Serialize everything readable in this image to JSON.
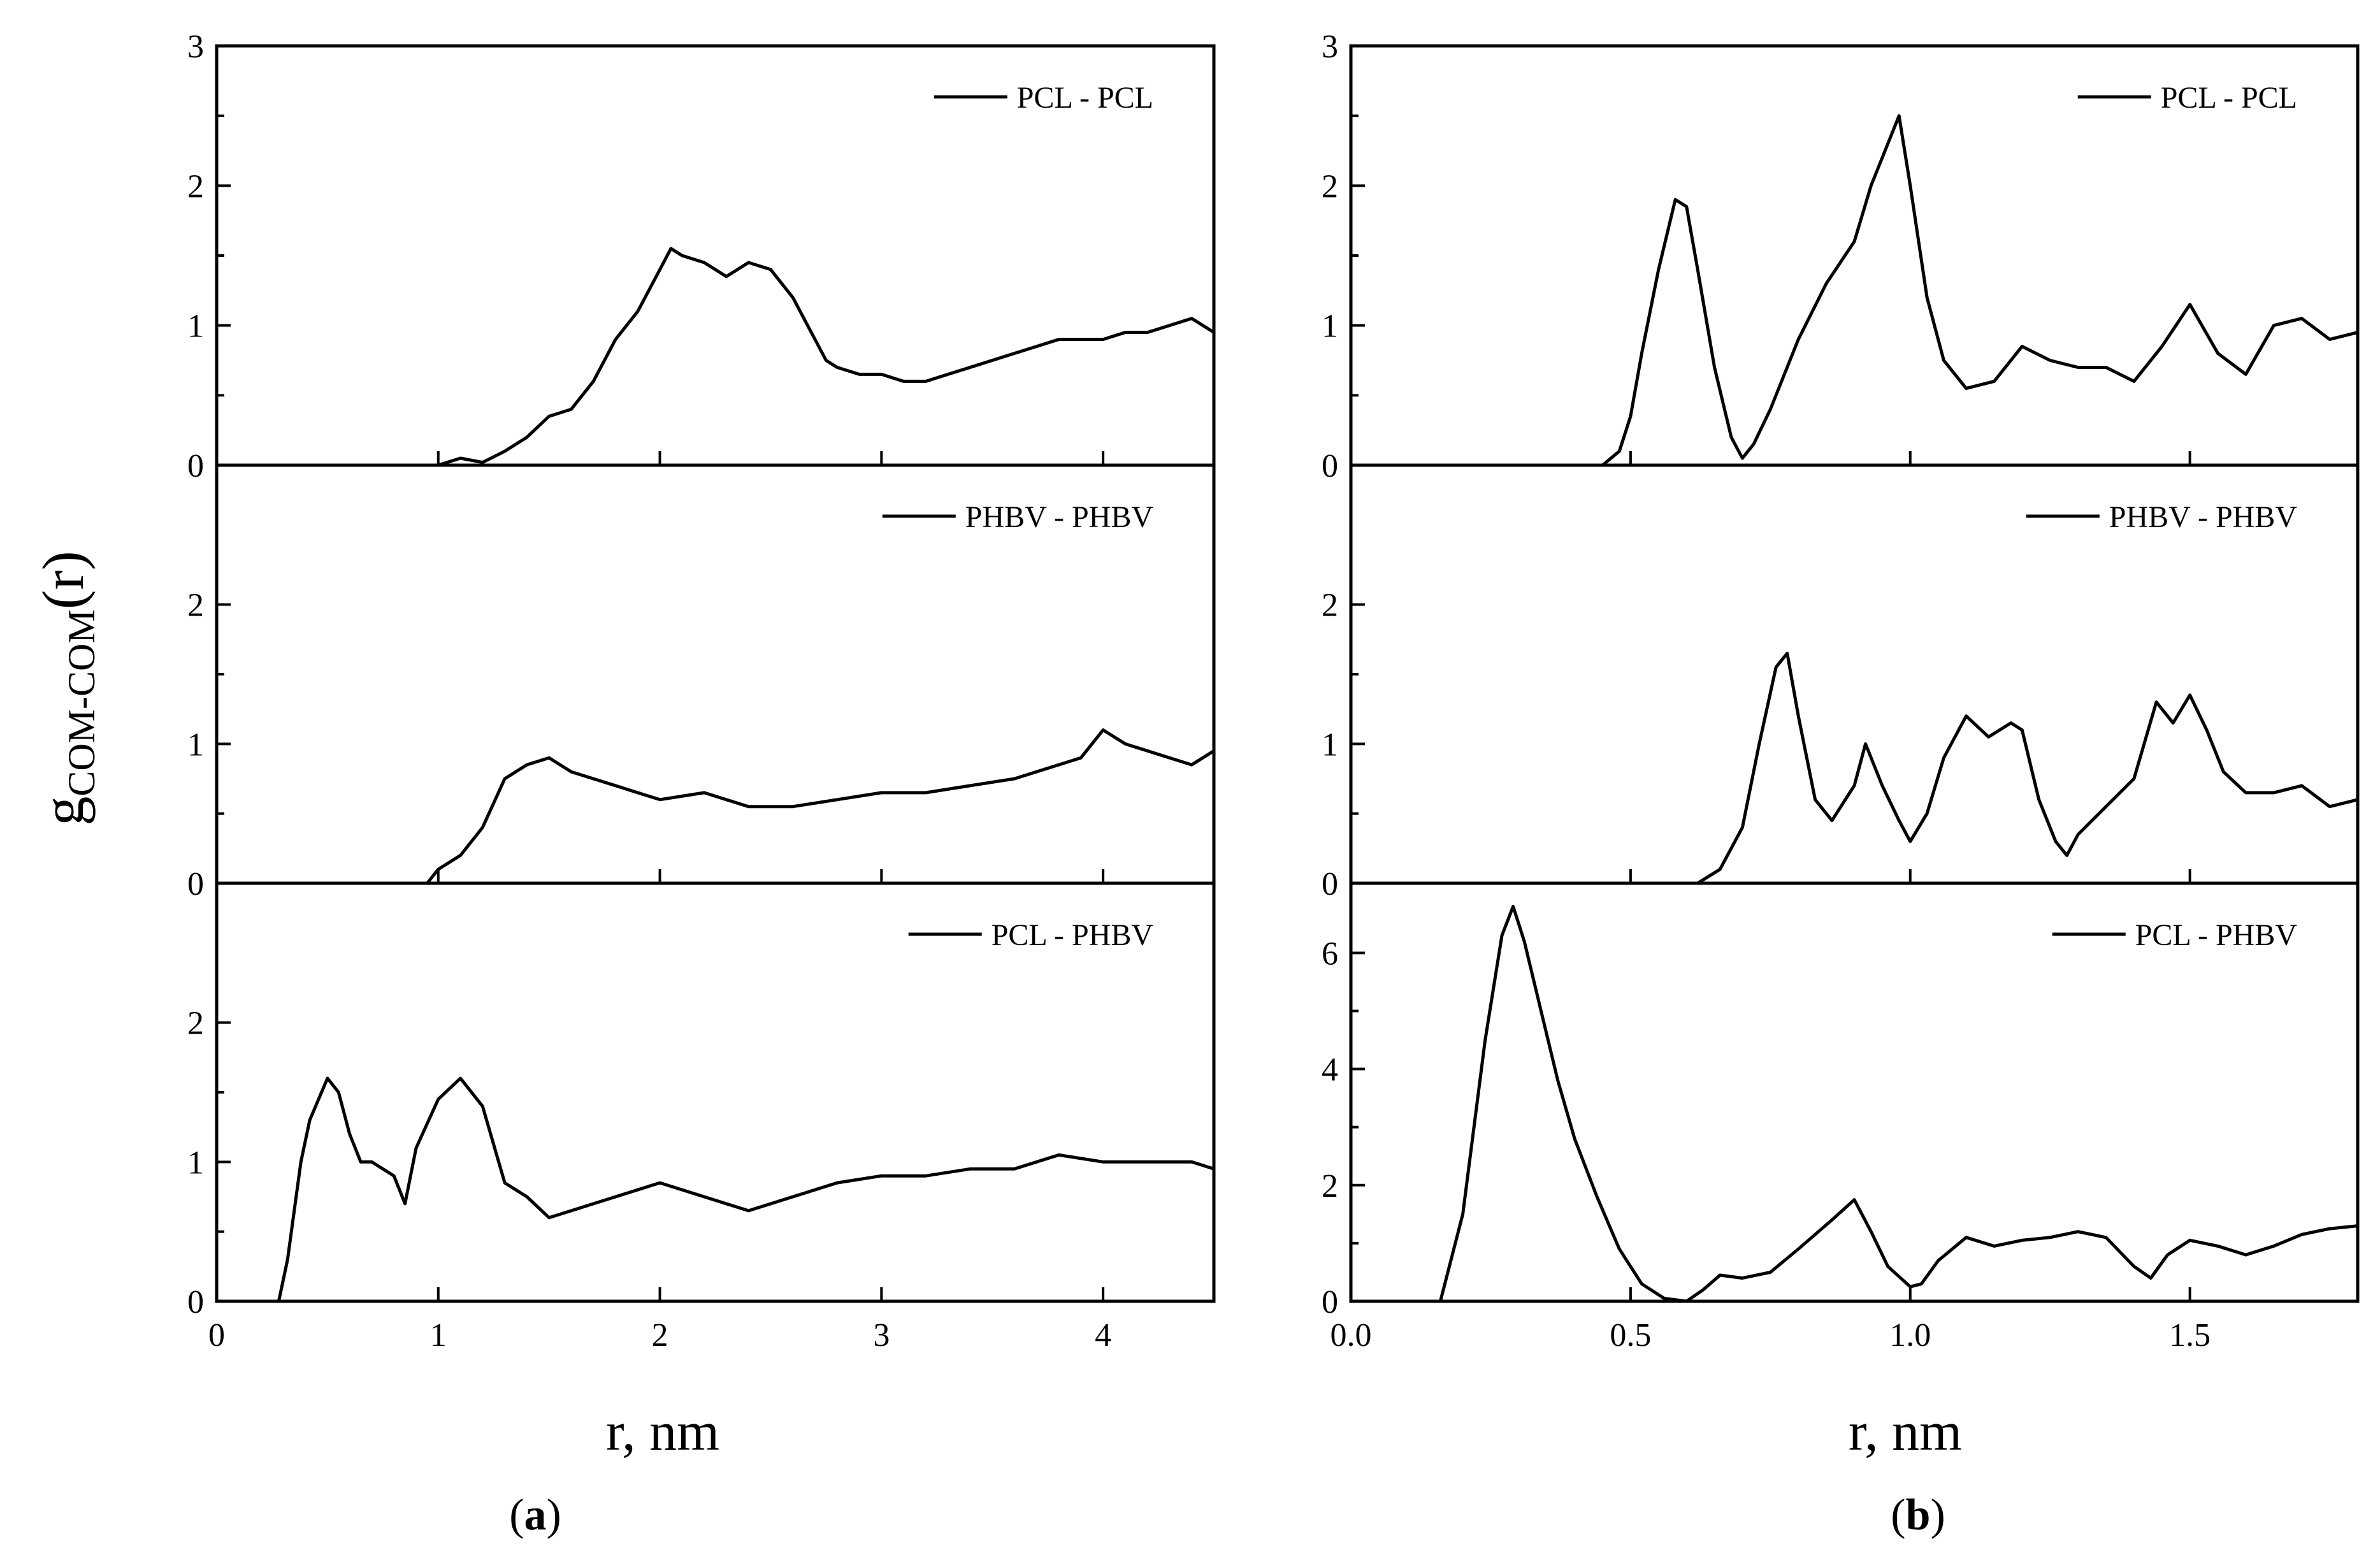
{
  "figure": {
    "y_axis_label": "g",
    "y_axis_label_sub": "COM-COM",
    "y_axis_label_tail": "(r)"
  },
  "chart_data": [
    {
      "panel": "a",
      "type": "line",
      "caption_letter": "a",
      "xlabel": "r, nm",
      "xlim": [
        0,
        4.5
      ],
      "x_ticks": [
        0,
        1,
        2,
        3,
        4
      ],
      "x_tick_labels": [
        "0",
        "1",
        "2",
        "3",
        "4"
      ],
      "subplots": [
        {
          "legend": "PCL - PCL",
          "ylim": [
            0,
            3
          ],
          "y_ticks": [
            0,
            1,
            2,
            3
          ],
          "y_tick_labels": [
            "0",
            "1",
            "2",
            "3"
          ],
          "x": [
            1.0,
            1.1,
            1.2,
            1.3,
            1.4,
            1.5,
            1.6,
            1.7,
            1.8,
            1.9,
            2.0,
            2.05,
            2.1,
            2.2,
            2.3,
            2.4,
            2.5,
            2.6,
            2.7,
            2.75,
            2.8,
            2.9,
            3.0,
            3.1,
            3.2,
            3.3,
            3.4,
            3.5,
            3.6,
            3.7,
            3.8,
            3.9,
            4.0,
            4.1,
            4.2,
            4.3,
            4.4,
            4.5
          ],
          "y": [
            0.0,
            0.05,
            0.02,
            0.1,
            0.2,
            0.35,
            0.4,
            0.6,
            0.9,
            1.1,
            1.4,
            1.55,
            1.5,
            1.45,
            1.35,
            1.45,
            1.4,
            1.2,
            0.9,
            0.75,
            0.7,
            0.65,
            0.65,
            0.6,
            0.6,
            0.65,
            0.7,
            0.75,
            0.8,
            0.85,
            0.9,
            0.9,
            0.9,
            0.95,
            0.95,
            1.0,
            1.05,
            0.95
          ]
        },
        {
          "legend": "PHBV - PHBV",
          "ylim": [
            0,
            3
          ],
          "y_ticks": [
            0,
            1,
            2
          ],
          "y_tick_labels": [
            "0",
            "1",
            "2"
          ],
          "x": [
            0.95,
            1.0,
            1.1,
            1.2,
            1.3,
            1.4,
            1.5,
            1.6,
            1.7,
            1.8,
            1.9,
            2.0,
            2.2,
            2.4,
            2.6,
            2.8,
            3.0,
            3.2,
            3.4,
            3.6,
            3.8,
            3.9,
            4.0,
            4.1,
            4.2,
            4.3,
            4.4,
            4.5
          ],
          "y": [
            0.0,
            0.1,
            0.2,
            0.4,
            0.75,
            0.85,
            0.9,
            0.8,
            0.75,
            0.7,
            0.65,
            0.6,
            0.65,
            0.55,
            0.55,
            0.6,
            0.65,
            0.65,
            0.7,
            0.75,
            0.85,
            0.9,
            1.1,
            1.0,
            0.95,
            0.9,
            0.85,
            0.95
          ]
        },
        {
          "legend": "PCL - PHBV",
          "ylim": [
            0,
            3
          ],
          "y_ticks": [
            0,
            1,
            2
          ],
          "y_tick_labels": [
            "0",
            "1",
            "2"
          ],
          "x": [
            0.28,
            0.32,
            0.38,
            0.42,
            0.5,
            0.55,
            0.6,
            0.65,
            0.7,
            0.8,
            0.85,
            0.9,
            1.0,
            1.1,
            1.2,
            1.3,
            1.4,
            1.5,
            1.6,
            1.8,
            2.0,
            2.2,
            2.4,
            2.6,
            2.8,
            3.0,
            3.2,
            3.4,
            3.6,
            3.8,
            4.0,
            4.2,
            4.4,
            4.5
          ],
          "y": [
            0.0,
            0.3,
            1.0,
            1.3,
            1.6,
            1.5,
            1.2,
            1.0,
            1.0,
            0.9,
            0.7,
            1.1,
            1.45,
            1.6,
            1.4,
            0.85,
            0.75,
            0.6,
            0.65,
            0.75,
            0.85,
            0.75,
            0.65,
            0.75,
            0.85,
            0.9,
            0.9,
            0.95,
            0.95,
            1.05,
            1.0,
            1.0,
            1.0,
            0.95
          ]
        }
      ]
    },
    {
      "panel": "b",
      "type": "line",
      "caption_letter": "b",
      "xlabel": "r, nm",
      "xlim": [
        0,
        1.8
      ],
      "x_ticks": [
        0,
        0.5,
        1.0,
        1.5
      ],
      "x_tick_labels": [
        "0.0",
        "0.5",
        "1.0",
        "1.5"
      ],
      "subplots": [
        {
          "legend": "PCL - PCL",
          "ylim": [
            0,
            3
          ],
          "y_ticks": [
            0,
            1,
            2,
            3
          ],
          "y_tick_labels": [
            "0",
            "1",
            "2",
            "3"
          ],
          "x": [
            0.45,
            0.48,
            0.5,
            0.52,
            0.55,
            0.58,
            0.6,
            0.62,
            0.65,
            0.68,
            0.7,
            0.72,
            0.75,
            0.8,
            0.85,
            0.9,
            0.93,
            0.96,
            0.98,
            1.0,
            1.03,
            1.06,
            1.1,
            1.15,
            1.2,
            1.25,
            1.3,
            1.35,
            1.4,
            1.45,
            1.5,
            1.55,
            1.6,
            1.65,
            1.7,
            1.75,
            1.8
          ],
          "y": [
            0.0,
            0.1,
            0.35,
            0.8,
            1.4,
            1.9,
            1.85,
            1.4,
            0.7,
            0.2,
            0.05,
            0.15,
            0.4,
            0.9,
            1.3,
            1.6,
            2.0,
            2.3,
            2.5,
            2.0,
            1.2,
            0.75,
            0.55,
            0.6,
            0.85,
            0.75,
            0.7,
            0.7,
            0.6,
            0.85,
            1.15,
            0.8,
            0.65,
            1.0,
            1.05,
            0.9,
            0.95
          ]
        },
        {
          "legend": "PHBV - PHBV",
          "ylim": [
            0,
            3
          ],
          "y_ticks": [
            0,
            1,
            2
          ],
          "y_tick_labels": [
            "0",
            "1",
            "2"
          ],
          "x": [
            0.62,
            0.66,
            0.7,
            0.73,
            0.76,
            0.78,
            0.8,
            0.83,
            0.86,
            0.9,
            0.92,
            0.95,
            0.98,
            1.0,
            1.03,
            1.06,
            1.1,
            1.14,
            1.18,
            1.2,
            1.23,
            1.26,
            1.28,
            1.3,
            1.35,
            1.4,
            1.44,
            1.47,
            1.5,
            1.53,
            1.56,
            1.6,
            1.65,
            1.7,
            1.75,
            1.8
          ],
          "y": [
            0.0,
            0.1,
            0.4,
            1.0,
            1.55,
            1.65,
            1.2,
            0.6,
            0.45,
            0.7,
            1.0,
            0.7,
            0.45,
            0.3,
            0.5,
            0.9,
            1.2,
            1.05,
            1.15,
            1.1,
            0.6,
            0.3,
            0.2,
            0.35,
            0.55,
            0.75,
            1.3,
            1.15,
            1.35,
            1.1,
            0.8,
            0.65,
            0.65,
            0.7,
            0.55,
            0.6
          ]
        },
        {
          "legend": "PCL - PHBV",
          "ylim": [
            0,
            7.2
          ],
          "y_ticks": [
            0,
            2,
            4,
            6
          ],
          "y_tick_labels": [
            "0",
            "2",
            "4",
            "6"
          ],
          "x": [
            0.16,
            0.2,
            0.24,
            0.27,
            0.29,
            0.31,
            0.34,
            0.37,
            0.4,
            0.44,
            0.48,
            0.52,
            0.56,
            0.6,
            0.63,
            0.66,
            0.7,
            0.75,
            0.8,
            0.86,
            0.9,
            0.93,
            0.96,
            1.0,
            1.02,
            1.05,
            1.1,
            1.15,
            1.2,
            1.25,
            1.3,
            1.35,
            1.4,
            1.43,
            1.46,
            1.5,
            1.55,
            1.6,
            1.65,
            1.7,
            1.75,
            1.8
          ],
          "y": [
            0.0,
            1.5,
            4.5,
            6.3,
            6.8,
            6.2,
            5.0,
            3.8,
            2.8,
            1.8,
            0.9,
            0.3,
            0.05,
            0.0,
            0.2,
            0.45,
            0.4,
            0.5,
            0.9,
            1.4,
            1.75,
            1.2,
            0.6,
            0.25,
            0.3,
            0.7,
            1.1,
            0.95,
            1.05,
            1.1,
            1.2,
            1.1,
            0.6,
            0.4,
            0.8,
            1.05,
            0.95,
            0.8,
            0.95,
            1.15,
            1.25,
            1.3
          ]
        }
      ]
    }
  ]
}
